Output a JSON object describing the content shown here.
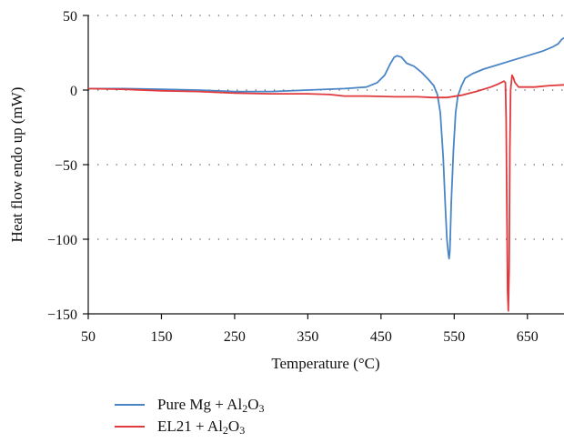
{
  "chart_data": {
    "type": "line",
    "title": "",
    "xlabel": "Temperature (°C)",
    "ylabel": "Heat flow endo up (mW)",
    "xlim": [
      50,
      700
    ],
    "ylim": [
      -150,
      50
    ],
    "x_ticks": [
      50,
      150,
      250,
      350,
      450,
      550,
      650
    ],
    "x_tick_labels": [
      "50",
      "150",
      "250",
      "350",
      "450",
      "550",
      "650"
    ],
    "y_ticks": [
      50,
      0,
      -50,
      -100,
      -150
    ],
    "y_tick_labels": [
      "50",
      "0",
      "−50",
      "−100",
      "−150"
    ],
    "grid": "horizontal dotted",
    "legend_position": "bottom-left",
    "series": [
      {
        "name": "Pure Mg + Al2O3",
        "color": "#4a86c6",
        "points": [
          [
            50,
            1
          ],
          [
            100,
            1
          ],
          [
            150,
            0.5
          ],
          [
            200,
            0
          ],
          [
            250,
            -1
          ],
          [
            300,
            -1
          ],
          [
            350,
            0
          ],
          [
            400,
            1
          ],
          [
            430,
            2
          ],
          [
            445,
            5
          ],
          [
            455,
            10
          ],
          [
            462,
            17
          ],
          [
            468,
            22
          ],
          [
            472,
            23
          ],
          [
            478,
            22
          ],
          [
            485,
            18
          ],
          [
            495,
            16
          ],
          [
            505,
            12
          ],
          [
            515,
            7
          ],
          [
            522,
            3
          ],
          [
            527,
            -3
          ],
          [
            531,
            -15
          ],
          [
            535,
            -45
          ],
          [
            538,
            -80
          ],
          [
            540,
            -100
          ],
          [
            542,
            -110
          ],
          [
            543,
            -113
          ],
          [
            544,
            -108
          ],
          [
            546,
            -75
          ],
          [
            549,
            -40
          ],
          [
            552,
            -15
          ],
          [
            555,
            -4
          ],
          [
            560,
            3
          ],
          [
            565,
            8
          ],
          [
            575,
            11
          ],
          [
            590,
            14
          ],
          [
            610,
            17
          ],
          [
            630,
            20
          ],
          [
            650,
            23
          ],
          [
            670,
            26
          ],
          [
            685,
            29
          ],
          [
            692,
            31
          ],
          [
            697,
            34
          ],
          [
            700,
            35
          ]
        ]
      },
      {
        "name": "EL21 + Al2O3",
        "color": "#e03a3e",
        "points": [
          [
            50,
            1
          ],
          [
            100,
            0.5
          ],
          [
            150,
            -0.5
          ],
          [
            200,
            -1
          ],
          [
            250,
            -2
          ],
          [
            300,
            -2.5
          ],
          [
            350,
            -2.5
          ],
          [
            380,
            -3
          ],
          [
            400,
            -4
          ],
          [
            430,
            -4
          ],
          [
            470,
            -4.5
          ],
          [
            500,
            -4.5
          ],
          [
            520,
            -5
          ],
          [
            540,
            -5
          ],
          [
            560,
            -3.5
          ],
          [
            580,
            -1
          ],
          [
            600,
            2
          ],
          [
            610,
            4
          ],
          [
            618,
            6
          ],
          [
            620,
            5
          ],
          [
            621,
            -20
          ],
          [
            622,
            -80
          ],
          [
            623,
            -135
          ],
          [
            624,
            -148
          ],
          [
            625,
            -120
          ],
          [
            626,
            -40
          ],
          [
            627,
            0
          ],
          [
            628,
            5
          ],
          [
            629,
            10
          ],
          [
            631,
            8
          ],
          [
            633,
            5
          ],
          [
            638,
            2
          ],
          [
            660,
            2
          ],
          [
            680,
            3
          ],
          [
            700,
            3.5
          ]
        ]
      }
    ]
  },
  "legend": {
    "items": [
      {
        "label_main": "Pure Mg + Al",
        "sub1": "2",
        "mid": "O",
        "sub2": "3",
        "color": "#4a86c6"
      },
      {
        "label_main": "EL21 + Al",
        "sub1": "2",
        "mid": "O",
        "sub2": "3",
        "color": "#e03a3e"
      }
    ]
  }
}
